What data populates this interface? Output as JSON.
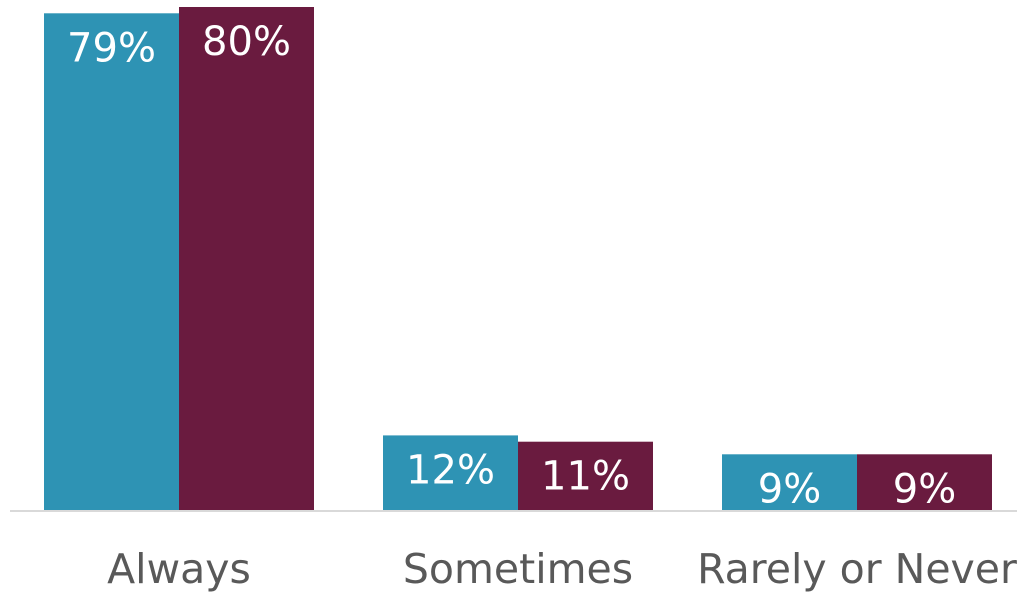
{
  "chart_data": {
    "type": "bar",
    "categories": [
      "Always",
      "Sometimes",
      "Rarely or Never"
    ],
    "series": [
      {
        "values": [
          79,
          12,
          9
        ],
        "labels": [
          "79%",
          "12%",
          "9%"
        ],
        "color": "#2e93b4"
      },
      {
        "values": [
          80,
          11,
          9
        ],
        "labels": [
          "80%",
          "11%",
          "9%"
        ],
        "color": "#6a1b3f"
      }
    ],
    "ylim": [
      0,
      80
    ],
    "grid": false,
    "axis_color": "#d9d9d9",
    "label_color": "#ffffff",
    "category_color": "#595959"
  }
}
